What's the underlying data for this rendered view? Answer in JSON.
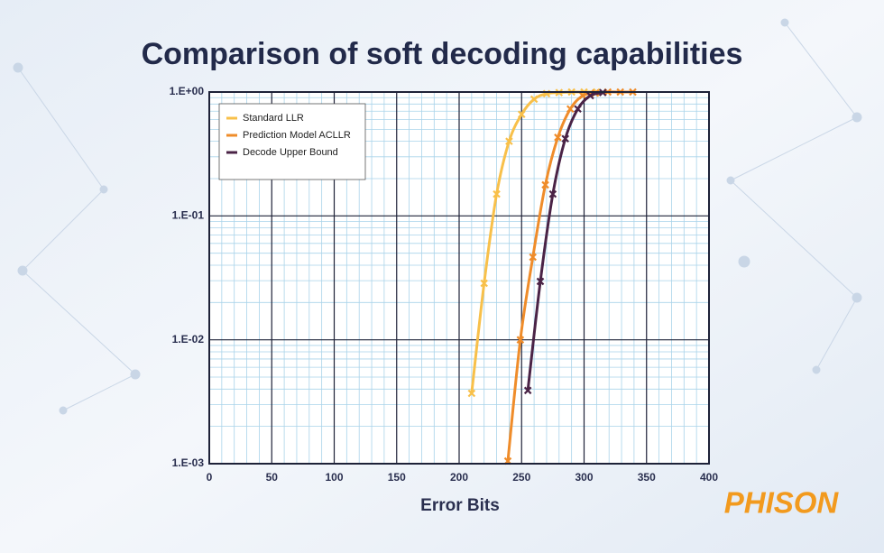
{
  "chart_data": {
    "type": "line",
    "title": "Comparison of soft decoding capabilities",
    "x_label": "Error Bits",
    "brand": "PHISON",
    "log_y": true,
    "grid": true,
    "legend": "upper left",
    "xlim": [
      0,
      400
    ],
    "xticks": [
      0,
      50,
      100,
      150,
      200,
      250,
      300,
      350,
      400
    ],
    "ylim": [
      0.001,
      1
    ],
    "yticks": [
      {
        "value": 0.001,
        "label": "1.E-03"
      },
      {
        "value": 0.01,
        "label": "1.E-02"
      },
      {
        "value": 0.1,
        "label": "1.E-01"
      },
      {
        "value": 1,
        "label": "1.E+00"
      }
    ],
    "series": [
      {
        "name": "Standard LLR",
        "color": "#f8c04a",
        "x": [
          210,
          220,
          230,
          240,
          250,
          260,
          270,
          280,
          290,
          300,
          310
        ],
        "values": [
          0.0037,
          0.0286,
          0.15,
          0.4,
          0.66,
          0.875,
          0.97,
          0.99,
          1,
          1,
          1
        ]
      },
      {
        "name": "Prediction Model ACLLR",
        "color": "#ef8c2a",
        "x": [
          239,
          249,
          259,
          269,
          279,
          289,
          299,
          309,
          319,
          329,
          339
        ],
        "values": [
          0.00105,
          0.01,
          0.0465,
          0.178,
          0.43,
          0.73,
          0.935,
          0.98,
          1,
          1,
          1
        ]
      },
      {
        "name": "Decode Upper Bound",
        "color": "#4a2346",
        "x": [
          255,
          265,
          275,
          285,
          295,
          305,
          315
        ],
        "values": [
          0.0039,
          0.0296,
          0.15,
          0.42,
          0.73,
          0.935,
          0.99
        ]
      }
    ]
  }
}
